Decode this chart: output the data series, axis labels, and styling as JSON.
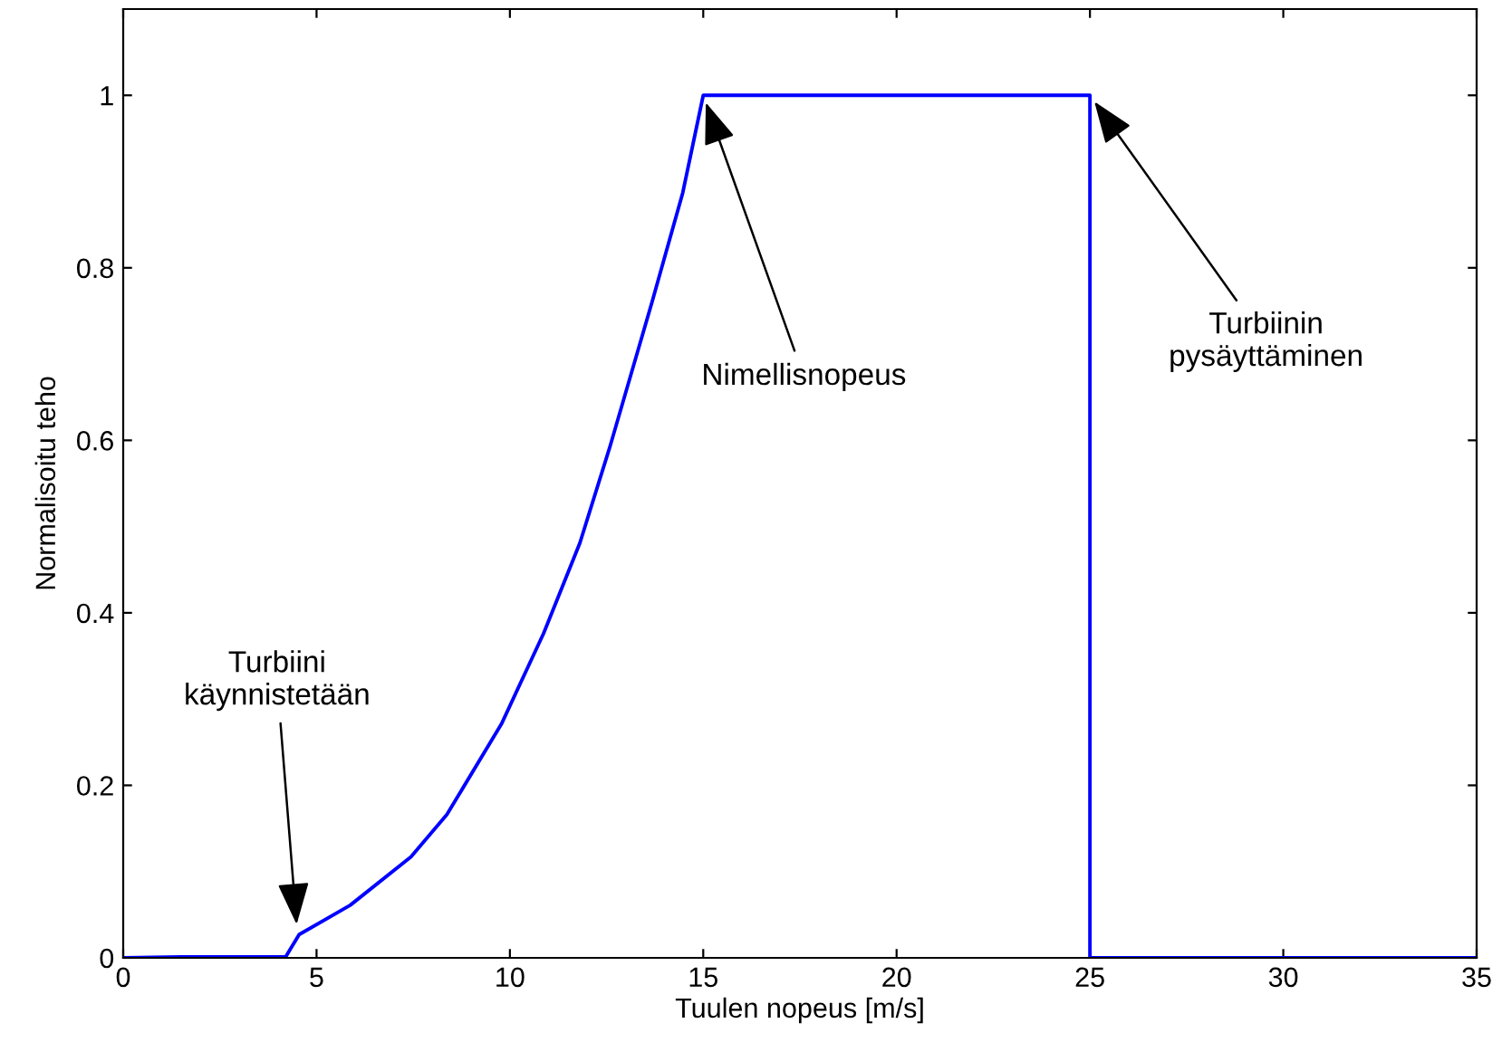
{
  "chart_data": {
    "type": "line",
    "xlabel": "Tuulen nopeus [m/s]",
    "ylabel": "Normalisoitu teho",
    "series": [
      {
        "color": "#0000ff",
        "x": [
          0,
          1.5,
          4.2,
          4.55,
          5.87,
          7.44,
          8.37,
          9.78,
          10.87,
          11.81,
          12.59,
          13.68,
          14.47,
          15,
          25,
          25,
          35
        ],
        "values": [
          0,
          0.001,
          0.001,
          0.027,
          0.061,
          0.117,
          0.166,
          0.271,
          0.376,
          0.481,
          0.593,
          0.761,
          0.887,
          1,
          1,
          0,
          0
        ]
      }
    ],
    "xlim": [
      0,
      35
    ],
    "xticks": [
      0,
      5,
      10,
      15,
      20,
      25,
      30,
      35
    ],
    "ylim": [
      0,
      1.1
    ],
    "yticks": [
      0,
      0.2,
      0.4,
      0.6,
      0.8,
      1
    ],
    "grid": false,
    "legend": false,
    "marker": "none",
    "line_style": "solid",
    "annotations": [
      {
        "text": "Turbiini\nkäynnistetään",
        "x": 4.5,
        "y": 0.03
      },
      {
        "text": "Nimellisnopeus",
        "x": 15,
        "y": 1
      },
      {
        "text": "Turbiinin\npysäyttäminen",
        "x": 25,
        "y": 1
      }
    ]
  }
}
